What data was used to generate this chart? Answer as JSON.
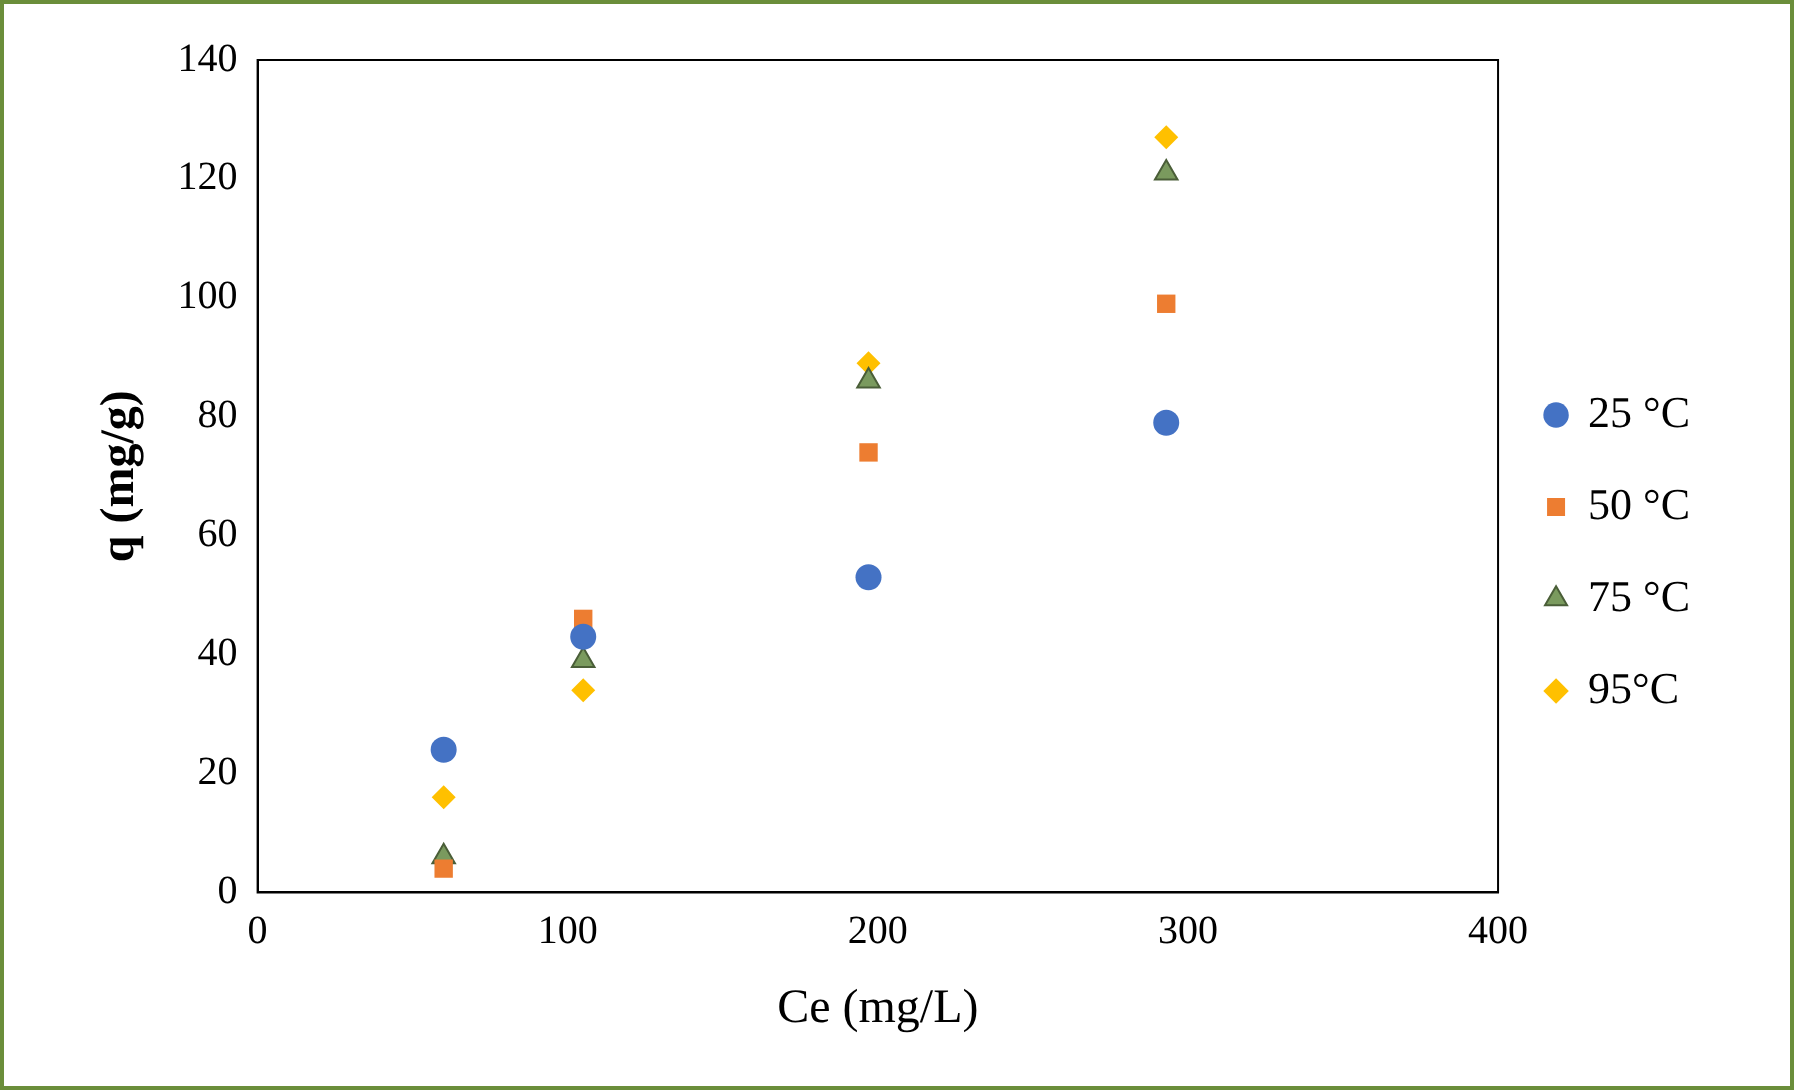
{
  "chart_data": {
    "type": "scatter",
    "xlabel": "Ce (mg/L)",
    "ylabel": "q (mg/g)",
    "xlim": [
      0,
      400
    ],
    "xticks": [
      0,
      100,
      200,
      300,
      400
    ],
    "ylim": [
      0,
      140
    ],
    "yticks": [
      0,
      20,
      40,
      60,
      80,
      100,
      120,
      140
    ],
    "grid": false,
    "legend": "right",
    "series": [
      {
        "name": "25 °C",
        "color": "#4472c4",
        "marker": "circle",
        "x": [
          60,
          105,
          197,
          293
        ],
        "values": [
          24,
          43,
          53,
          79
        ]
      },
      {
        "name": "50 °C",
        "color": "#ed7d31",
        "marker": "square",
        "x": [
          60,
          105,
          197,
          293
        ],
        "values": [
          4,
          46,
          74,
          99
        ]
      },
      {
        "name": "75 °C",
        "color": "#7a9a5e",
        "marker": "triangle",
        "x": [
          60,
          105,
          197,
          293
        ],
        "values": [
          6,
          39,
          86,
          121
        ]
      },
      {
        "name": "95°C",
        "color": "#ffc000",
        "marker": "diamond",
        "x": [
          60,
          105,
          197,
          293
        ],
        "values": [
          16,
          34,
          89,
          127
        ]
      }
    ]
  }
}
